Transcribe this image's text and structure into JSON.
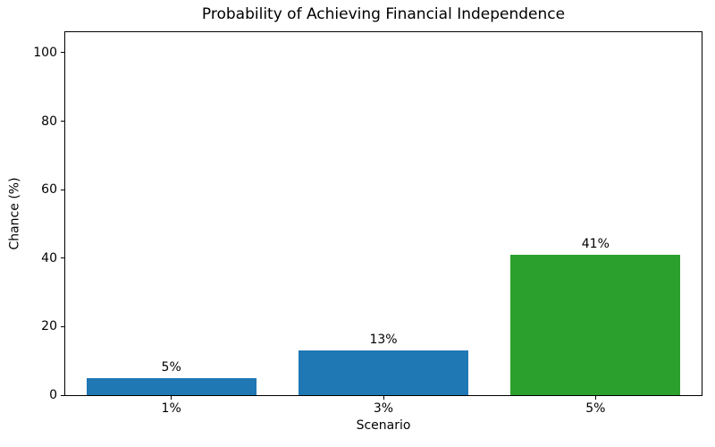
{
  "chart_data": {
    "type": "bar",
    "title": "Probability of Achieving Financial Independence",
    "xlabel": "Scenario",
    "ylabel": "Chance (%)",
    "categories": [
      "1%",
      "3%",
      "5%"
    ],
    "values": [
      5,
      13,
      41
    ],
    "bar_labels": [
      "5%",
      "13%",
      "41%"
    ],
    "bar_colors": [
      "#1f77b4",
      "#1f77b4",
      "#2ca02c"
    ],
    "ylim": [
      0,
      106
    ],
    "yticks": [
      0,
      20,
      40,
      60,
      80,
      100
    ],
    "bar_width_fraction": 0.8,
    "grid": false,
    "legend_position": "none",
    "background_color": "#ffffff",
    "axis_color": "#000000",
    "text_color": "#000000"
  }
}
